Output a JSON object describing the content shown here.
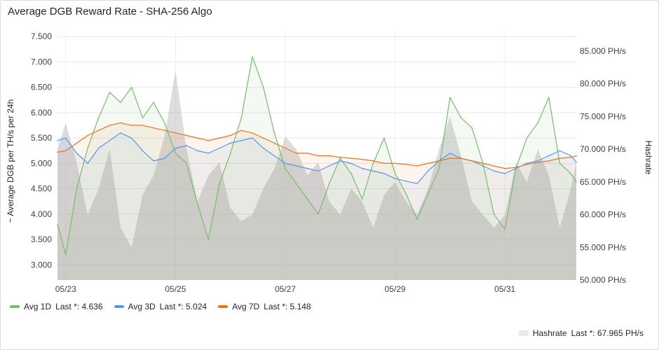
{
  "panel": {
    "title": "Average DGB Reward Rate - SHA-256 Algo"
  },
  "colors": {
    "avg1d": "#73bf69",
    "avg3d": "#5794f2",
    "avg7d": "#e8731f",
    "hashrate": "#c9c9c9"
  },
  "legend": {
    "series": [
      {
        "name": "Avg 1D",
        "last": "Last *: 4.636",
        "color": "#73bf69"
      },
      {
        "name": "Avg 3D",
        "last": "Last *: 5.024",
        "color": "#5794f2"
      },
      {
        "name": "Avg 7D",
        "last": "Last *: 5.148",
        "color": "#e8731f"
      }
    ],
    "hashrate": {
      "name": "Hashrate",
      "last": "Last *: 67.965 PH/s"
    }
  },
  "chart_data": {
    "type": "line",
    "ylabel_left": "~ Average DGB per TH/s per 24h",
    "ylabel_right": "Hashrate",
    "y_left_range": [
      2.7,
      7.6
    ],
    "y_right_range": [
      50,
      88
    ],
    "y_left_ticks": [
      "3.000",
      "3.500",
      "4.000",
      "4.500",
      "5.000",
      "5.500",
      "6.000",
      "6.500",
      "7.000",
      "7.500"
    ],
    "y_right_ticks": [
      "50.000 PH/s",
      "55.000 PH/s",
      "60.000 PH/s",
      "65.000 PH/s",
      "70.000 PH/s",
      "75.000 PH/s",
      "80.000 PH/s",
      "85.000 PH/s"
    ],
    "x_range": [
      22.85,
      32.3
    ],
    "x_ticks": [
      {
        "x": 23,
        "label": "05/23"
      },
      {
        "x": 25,
        "label": "05/25"
      },
      {
        "x": 27,
        "label": "05/27"
      },
      {
        "x": 29,
        "label": "05/29"
      },
      {
        "x": 31,
        "label": "05/31"
      }
    ],
    "grid": true,
    "series": [
      {
        "name": "Avg 1D",
        "axis": "left",
        "x": [
          22.85,
          23.0,
          23.2,
          23.4,
          23.6,
          23.8,
          24.0,
          24.2,
          24.4,
          24.6,
          24.8,
          25.0,
          25.2,
          25.4,
          25.6,
          25.8,
          26.0,
          26.2,
          26.4,
          26.6,
          26.8,
          27.0,
          27.2,
          27.4,
          27.6,
          27.8,
          28.0,
          28.2,
          28.4,
          28.6,
          28.8,
          29.0,
          29.2,
          29.4,
          29.6,
          29.8,
          30.0,
          30.2,
          30.4,
          30.6,
          30.8,
          31.0,
          31.2,
          31.4,
          31.6,
          31.8,
          32.0,
          32.2,
          32.3
        ],
        "values": [
          3.8,
          3.2,
          4.5,
          5.3,
          5.9,
          6.4,
          6.2,
          6.5,
          5.9,
          6.2,
          5.8,
          5.2,
          5.0,
          4.2,
          3.5,
          4.6,
          5.2,
          5.9,
          7.1,
          6.5,
          5.6,
          4.9,
          4.6,
          4.3,
          4.0,
          4.6,
          5.1,
          4.8,
          4.3,
          5.0,
          5.5,
          4.8,
          4.4,
          3.9,
          4.4,
          4.9,
          6.3,
          5.9,
          5.7,
          5.0,
          4.0,
          3.7,
          4.9,
          5.5,
          5.8,
          6.3,
          5.0,
          4.8,
          4.636
        ]
      },
      {
        "name": "Avg 3D",
        "axis": "left",
        "x": [
          22.85,
          23.0,
          23.2,
          23.4,
          23.6,
          23.8,
          24.0,
          24.2,
          24.4,
          24.6,
          24.8,
          25.0,
          25.2,
          25.4,
          25.6,
          25.8,
          26.0,
          26.2,
          26.4,
          26.6,
          26.8,
          27.0,
          27.2,
          27.4,
          27.6,
          27.8,
          28.0,
          28.2,
          28.4,
          28.6,
          28.8,
          29.0,
          29.2,
          29.4,
          29.6,
          29.8,
          30.0,
          30.2,
          30.4,
          30.6,
          30.8,
          31.0,
          31.2,
          31.4,
          31.6,
          31.8,
          32.0,
          32.2,
          32.3
        ],
        "values": [
          5.45,
          5.5,
          5.2,
          5.0,
          5.3,
          5.45,
          5.6,
          5.5,
          5.25,
          5.05,
          5.1,
          5.3,
          5.35,
          5.25,
          5.2,
          5.3,
          5.4,
          5.45,
          5.5,
          5.3,
          5.15,
          5.0,
          4.95,
          4.9,
          4.85,
          4.95,
          5.05,
          5.0,
          4.9,
          4.85,
          4.8,
          4.7,
          4.65,
          4.6,
          4.85,
          5.05,
          5.2,
          5.1,
          5.05,
          4.95,
          4.85,
          4.8,
          4.9,
          5.0,
          5.05,
          5.15,
          5.25,
          5.15,
          5.024
        ]
      },
      {
        "name": "Avg 7D",
        "axis": "left",
        "x": [
          22.85,
          23.0,
          23.2,
          23.4,
          23.6,
          23.8,
          24.0,
          24.2,
          24.4,
          24.6,
          24.8,
          25.0,
          25.2,
          25.4,
          25.6,
          25.8,
          26.0,
          26.2,
          26.4,
          26.6,
          26.8,
          27.0,
          27.2,
          27.4,
          27.6,
          27.8,
          28.0,
          28.2,
          28.4,
          28.6,
          28.8,
          29.0,
          29.2,
          29.4,
          29.6,
          29.8,
          30.0,
          30.2,
          30.4,
          30.6,
          30.8,
          31.0,
          31.2,
          31.4,
          31.6,
          31.8,
          32.0,
          32.2,
          32.3
        ],
        "values": [
          5.22,
          5.25,
          5.4,
          5.55,
          5.65,
          5.75,
          5.8,
          5.75,
          5.75,
          5.7,
          5.65,
          5.6,
          5.55,
          5.5,
          5.45,
          5.5,
          5.55,
          5.65,
          5.6,
          5.5,
          5.4,
          5.3,
          5.2,
          5.2,
          5.15,
          5.15,
          5.12,
          5.1,
          5.08,
          5.05,
          5.0,
          5.0,
          4.98,
          4.95,
          5.0,
          5.05,
          5.1,
          5.1,
          5.05,
          5.0,
          4.95,
          4.9,
          4.92,
          4.98,
          5.02,
          5.05,
          5.1,
          5.12,
          5.148
        ]
      },
      {
        "name": "Hashrate",
        "axis": "right",
        "x": [
          22.85,
          23.0,
          23.2,
          23.4,
          23.6,
          23.8,
          24.0,
          24.2,
          24.4,
          24.6,
          24.8,
          25.0,
          25.2,
          25.4,
          25.6,
          25.8,
          26.0,
          26.2,
          26.4,
          26.6,
          26.8,
          27.0,
          27.2,
          27.4,
          27.6,
          27.8,
          28.0,
          28.2,
          28.4,
          28.6,
          28.8,
          29.0,
          29.2,
          29.4,
          29.6,
          29.8,
          30.0,
          30.2,
          30.4,
          30.6,
          30.8,
          31.0,
          31.2,
          31.4,
          31.6,
          31.8,
          32.0,
          32.2,
          32.3
        ],
        "values": [
          70,
          74,
          68,
          60,
          64,
          70,
          58,
          55,
          63,
          66,
          72,
          82,
          70,
          62,
          66,
          68,
          61,
          59,
          60,
          64,
          67,
          72,
          70,
          66,
          68,
          62,
          60,
          64,
          62,
          58,
          63,
          65,
          62,
          60,
          64,
          70,
          75,
          69,
          62,
          60,
          58,
          60,
          68,
          65,
          70,
          66,
          58,
          64,
          67.965
        ]
      }
    ]
  }
}
